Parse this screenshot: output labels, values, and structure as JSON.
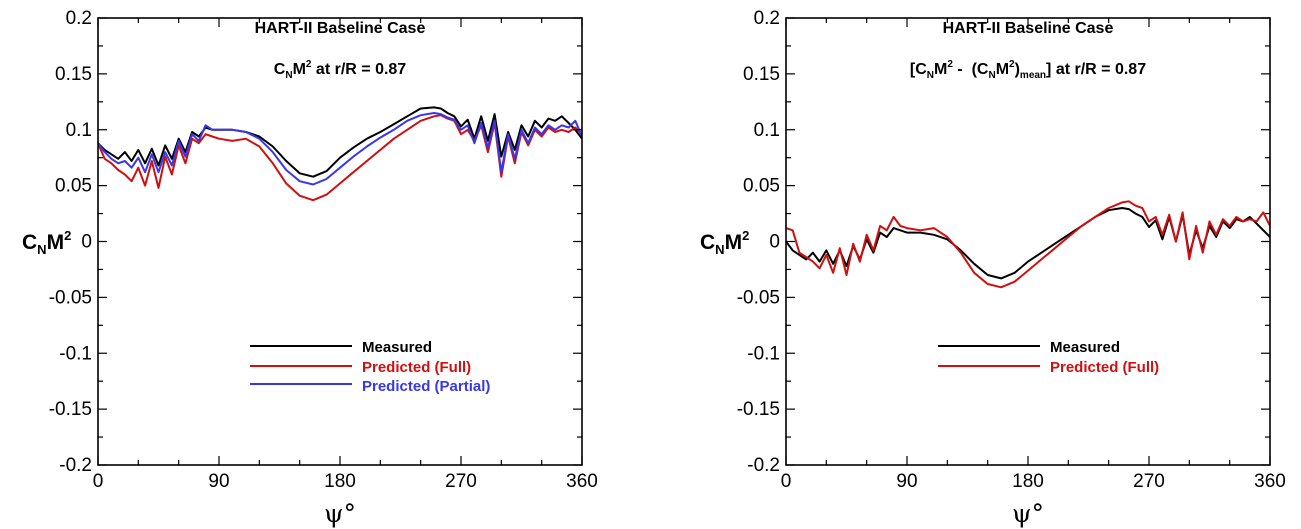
{
  "chart_data": [
    {
      "type": "line",
      "title": "HART-II Baseline Case",
      "subtitle_parts": {
        "base": "C",
        "sub1": "N",
        "mid": "M",
        "sup1": "2",
        "tail": " at r/R = 0.87"
      },
      "ylabel_parts": {
        "base": "C",
        "sub": "N",
        "mid": "M",
        "sup": "2"
      },
      "xlabel": "ψ°",
      "xlim": [
        0,
        360
      ],
      "ylim": [
        -0.2,
        0.2
      ],
      "xticks": [
        0,
        90,
        180,
        270,
        360
      ],
      "xtick_labels": [
        "0",
        "90",
        "180",
        "270",
        "360"
      ],
      "yticks": [
        -0.2,
        -0.15,
        -0.1,
        -0.05,
        0,
        0.05,
        0.1,
        0.15,
        0.2
      ],
      "ytick_labels": [
        "-0.2",
        "-0.15",
        "-0.1",
        "-0.05",
        "0",
        "0.05",
        "0.1",
        "0.15",
        "0.2"
      ],
      "legend_position": "lower-center",
      "series": [
        {
          "name": "Measured",
          "color": "#000000",
          "x": [
            0,
            5,
            10,
            15,
            20,
            25,
            30,
            35,
            40,
            45,
            50,
            55,
            60,
            65,
            70,
            75,
            80,
            85,
            90,
            100,
            110,
            120,
            130,
            140,
            150,
            160,
            170,
            180,
            190,
            200,
            210,
            220,
            230,
            240,
            250,
            255,
            260,
            265,
            270,
            275,
            280,
            285,
            290,
            295,
            300,
            305,
            310,
            315,
            320,
            325,
            330,
            335,
            340,
            345,
            350,
            355,
            360
          ],
          "y": [
            0.088,
            0.082,
            0.078,
            0.074,
            0.08,
            0.072,
            0.082,
            0.07,
            0.083,
            0.068,
            0.086,
            0.074,
            0.092,
            0.08,
            0.098,
            0.094,
            0.102,
            0.1,
            0.1,
            0.1,
            0.098,
            0.094,
            0.085,
            0.072,
            0.061,
            0.058,
            0.063,
            0.075,
            0.084,
            0.092,
            0.098,
            0.105,
            0.112,
            0.119,
            0.12,
            0.119,
            0.115,
            0.112,
            0.103,
            0.109,
            0.092,
            0.112,
            0.09,
            0.114,
            0.076,
            0.098,
            0.082,
            0.104,
            0.094,
            0.108,
            0.102,
            0.11,
            0.108,
            0.112,
            0.106,
            0.1,
            0.092
          ]
        },
        {
          "name": "Predicted (Full)",
          "color": "#d01010",
          "x": [
            0,
            5,
            10,
            15,
            20,
            25,
            30,
            35,
            40,
            45,
            50,
            55,
            60,
            65,
            70,
            75,
            80,
            85,
            90,
            100,
            110,
            120,
            130,
            140,
            150,
            160,
            170,
            180,
            190,
            200,
            210,
            220,
            230,
            240,
            250,
            255,
            260,
            265,
            270,
            275,
            280,
            285,
            290,
            295,
            300,
            305,
            310,
            315,
            320,
            325,
            330,
            335,
            340,
            345,
            350,
            355,
            360
          ],
          "y": [
            0.088,
            0.074,
            0.07,
            0.064,
            0.06,
            0.054,
            0.066,
            0.05,
            0.072,
            0.048,
            0.076,
            0.06,
            0.086,
            0.07,
            0.092,
            0.088,
            0.096,
            0.094,
            0.092,
            0.09,
            0.092,
            0.085,
            0.07,
            0.052,
            0.041,
            0.037,
            0.042,
            0.052,
            0.062,
            0.072,
            0.082,
            0.092,
            0.1,
            0.108,
            0.112,
            0.113,
            0.11,
            0.108,
            0.096,
            0.1,
            0.09,
            0.104,
            0.08,
            0.106,
            0.058,
            0.094,
            0.07,
            0.098,
            0.086,
            0.1,
            0.094,
            0.102,
            0.098,
            0.1,
            0.098,
            0.102,
            0.096
          ]
        },
        {
          "name": "Predicted (Partial)",
          "color": "#3838e8",
          "x": [
            0,
            5,
            10,
            15,
            20,
            25,
            30,
            35,
            40,
            45,
            50,
            55,
            60,
            65,
            70,
            75,
            80,
            85,
            90,
            100,
            110,
            120,
            130,
            140,
            150,
            160,
            170,
            180,
            190,
            200,
            210,
            220,
            230,
            240,
            250,
            255,
            260,
            265,
            270,
            275,
            280,
            285,
            290,
            295,
            300,
            305,
            310,
            315,
            320,
            325,
            330,
            335,
            340,
            345,
            350,
            355,
            360
          ],
          "y": [
            0.088,
            0.08,
            0.074,
            0.07,
            0.072,
            0.066,
            0.075,
            0.062,
            0.078,
            0.062,
            0.08,
            0.068,
            0.09,
            0.076,
            0.096,
            0.09,
            0.104,
            0.1,
            0.1,
            0.1,
            0.098,
            0.092,
            0.08,
            0.064,
            0.054,
            0.051,
            0.056,
            0.066,
            0.076,
            0.085,
            0.093,
            0.1,
            0.108,
            0.113,
            0.115,
            0.114,
            0.111,
            0.109,
            0.1,
            0.104,
            0.088,
            0.106,
            0.084,
            0.108,
            0.062,
            0.096,
            0.074,
            0.1,
            0.088,
            0.102,
            0.096,
            0.104,
            0.1,
            0.104,
            0.102,
            0.108,
            0.094
          ]
        }
      ]
    },
    {
      "type": "line",
      "title": "HART-II Baseline Case",
      "subtitle_parts": {
        "open": "[C",
        "sub1": "N",
        "mid1": "M",
        "sup1": "2",
        "mid2": " -  (C",
        "sub2": "N",
        "mid3": "M",
        "sup2": "2",
        "mid4": ")",
        "sub3": "mean",
        "tail": "] at r/R = 0.87"
      },
      "ylabel_parts": {
        "base": "C",
        "sub": "N",
        "mid": "M",
        "sup": "2"
      },
      "xlabel": "ψ°",
      "xlim": [
        0,
        360
      ],
      "ylim": [
        -0.2,
        0.2
      ],
      "xticks": [
        0,
        90,
        180,
        270,
        360
      ],
      "xtick_labels": [
        "0",
        "90",
        "180",
        "270",
        "360"
      ],
      "yticks": [
        -0.2,
        -0.15,
        -0.1,
        -0.05,
        0,
        0.05,
        0.1,
        0.15,
        0.2
      ],
      "ytick_labels": [
        "-0.2",
        "-0.15",
        "-0.1",
        "-0.05",
        "0",
        "0.05",
        "0.1",
        "0.15",
        "0.2"
      ],
      "legend_position": "lower-center",
      "series": [
        {
          "name": "Measured",
          "color": "#000000",
          "x": [
            0,
            5,
            10,
            15,
            20,
            25,
            30,
            35,
            40,
            45,
            50,
            55,
            60,
            65,
            70,
            75,
            80,
            85,
            90,
            100,
            110,
            120,
            130,
            140,
            150,
            160,
            170,
            180,
            190,
            200,
            210,
            220,
            230,
            240,
            250,
            255,
            260,
            265,
            270,
            275,
            280,
            285,
            290,
            295,
            300,
            305,
            310,
            315,
            320,
            325,
            330,
            335,
            340,
            345,
            350,
            355,
            360
          ],
          "y": [
            0.0,
            -0.008,
            -0.012,
            -0.016,
            -0.01,
            -0.018,
            -0.008,
            -0.02,
            -0.008,
            -0.022,
            -0.004,
            -0.016,
            0.002,
            -0.01,
            0.008,
            0.004,
            0.012,
            0.01,
            0.008,
            0.008,
            0.006,
            0.002,
            -0.008,
            -0.02,
            -0.03,
            -0.033,
            -0.028,
            -0.018,
            -0.01,
            -0.002,
            0.006,
            0.014,
            0.022,
            0.028,
            0.03,
            0.029,
            0.025,
            0.022,
            0.013,
            0.019,
            0.002,
            0.022,
            0.0,
            0.024,
            -0.012,
            0.01,
            -0.006,
            0.014,
            0.004,
            0.018,
            0.012,
            0.02,
            0.018,
            0.022,
            0.016,
            0.01,
            0.004
          ]
        },
        {
          "name": "Predicted (Full)",
          "color": "#d01010",
          "x": [
            0,
            5,
            10,
            15,
            20,
            25,
            30,
            35,
            40,
            45,
            50,
            55,
            60,
            65,
            70,
            75,
            80,
            85,
            90,
            100,
            110,
            120,
            130,
            140,
            150,
            160,
            170,
            180,
            190,
            200,
            210,
            220,
            230,
            240,
            250,
            255,
            260,
            265,
            270,
            275,
            280,
            285,
            290,
            295,
            300,
            305,
            310,
            315,
            320,
            325,
            330,
            335,
            340,
            345,
            350,
            355,
            360
          ],
          "y": [
            0.012,
            0.01,
            -0.01,
            -0.014,
            -0.018,
            -0.024,
            -0.012,
            -0.028,
            -0.006,
            -0.03,
            -0.002,
            -0.018,
            0.006,
            -0.008,
            0.014,
            0.01,
            0.022,
            0.014,
            0.012,
            0.01,
            0.012,
            0.004,
            -0.01,
            -0.028,
            -0.038,
            -0.041,
            -0.036,
            -0.026,
            -0.016,
            -0.006,
            0.004,
            0.014,
            0.022,
            0.03,
            0.035,
            0.036,
            0.032,
            0.03,
            0.018,
            0.022,
            0.006,
            0.024,
            0.0,
            0.026,
            -0.016,
            0.014,
            -0.01,
            0.018,
            0.006,
            0.02,
            0.014,
            0.022,
            0.018,
            0.02,
            0.018,
            0.026,
            0.014
          ]
        }
      ]
    }
  ]
}
